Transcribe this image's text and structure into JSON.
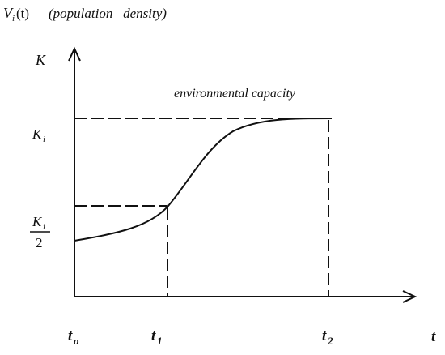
{
  "title": {
    "func_V": "V",
    "func_sub": "i",
    "func_arg": "(t)",
    "desc": "(population   density)"
  },
  "axes": {
    "y_label": "K",
    "x_label": "t"
  },
  "annotation": "environmental capacity",
  "y_ticks": {
    "ki_K": "K",
    "ki_sub": "i",
    "half_num_K": "K",
    "half_num_sub": "i",
    "half_den": "2"
  },
  "x_ticks": {
    "t0_main": "t",
    "t0_sub": "o",
    "t1_main": "t",
    "t1_sub": "1",
    "t2_main": "t",
    "t2_sub": "2"
  },
  "colors": {
    "ink": "#111111",
    "background": "#ffffff"
  }
}
